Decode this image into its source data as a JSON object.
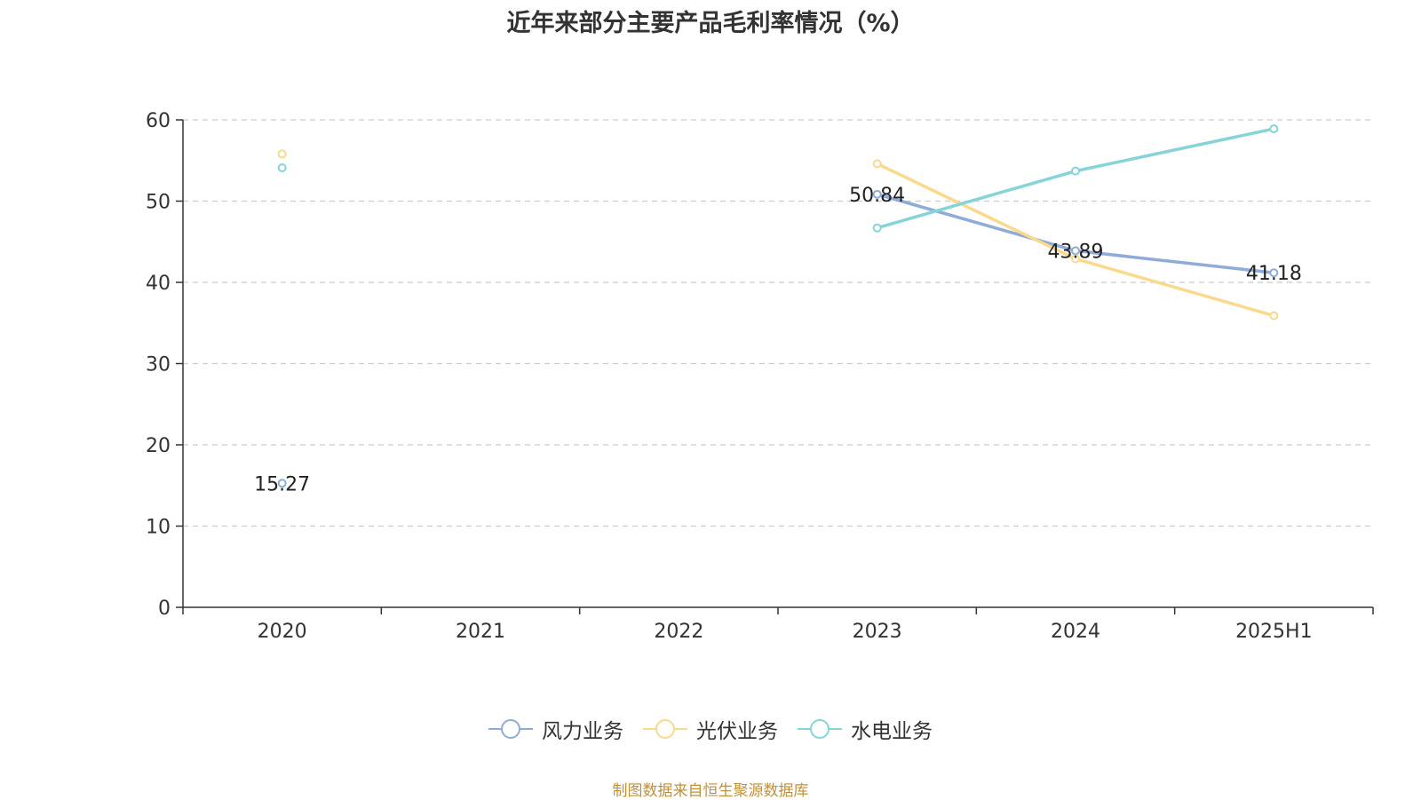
{
  "title": "近年来部分主要产品毛利率情况（%）",
  "source_note": "制图数据来自恒生聚源数据库",
  "colors": {
    "wind": "#8fabd8",
    "solar": "#fad98c",
    "hydro": "#85d5d8",
    "axis": "#333333",
    "grid": "#cccccc",
    "source": "#c0913a"
  },
  "chart_data": {
    "type": "line",
    "title": "近年来部分主要产品毛利率情况（%）",
    "xlabel": "",
    "ylabel": "",
    "categories": [
      "2020",
      "2021",
      "2022",
      "2023",
      "2024",
      "2025H1"
    ],
    "ylim": [
      0,
      60
    ],
    "yticks": [
      0,
      10,
      20,
      30,
      40,
      50,
      60
    ],
    "grid": true,
    "legend_position": "bottom",
    "series": [
      {
        "name": "风力业务",
        "color": "#8fabd8",
        "values": [
          15.27,
          null,
          null,
          50.84,
          43.89,
          41.18
        ],
        "labels": [
          "15.27",
          null,
          null,
          "50.84",
          "43.89",
          "41.18"
        ]
      },
      {
        "name": "光伏业务",
        "color": "#fad98c",
        "values": [
          55.8,
          null,
          null,
          54.6,
          42.9,
          35.9
        ],
        "labels": [
          null,
          null,
          null,
          null,
          null,
          null
        ]
      },
      {
        "name": "水电业务",
        "color": "#85d5d8",
        "values": [
          54.1,
          null,
          null,
          46.7,
          53.7,
          58.9
        ],
        "labels": [
          null,
          null,
          null,
          null,
          null,
          null
        ]
      }
    ]
  }
}
